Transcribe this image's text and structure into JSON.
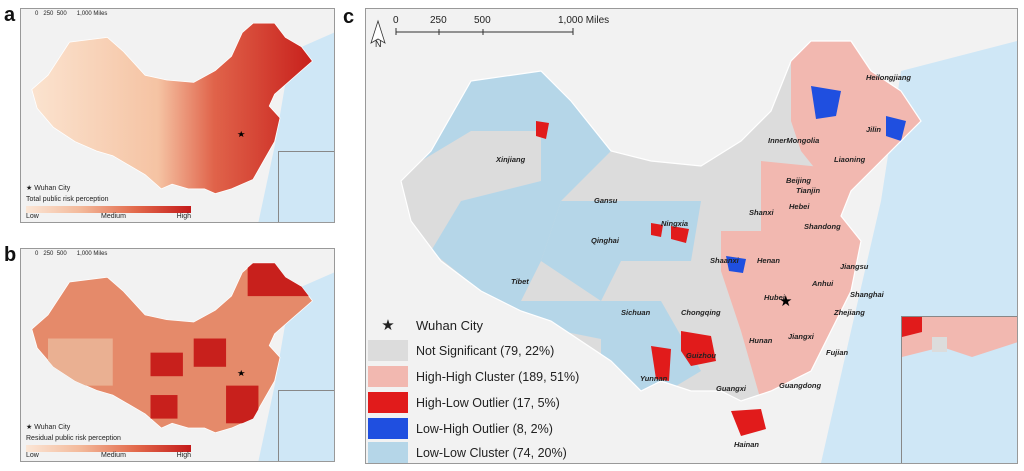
{
  "panels": {
    "a": {
      "label": "a",
      "legend_star": "Wuhan City",
      "legend_title": "Total public risk perception",
      "low": "Low",
      "medium": "Medium",
      "high": "High"
    },
    "b": {
      "label": "b",
      "legend_star": "Wuhan City",
      "legend_title": "Residual public risk perception",
      "low": "Low",
      "medium": "Medium",
      "high": "High"
    },
    "c": {
      "label": "c"
    }
  },
  "scalebar": {
    "ticks": [
      "0",
      "250",
      "500",
      "1,000 Miles"
    ],
    "north": "N"
  },
  "legend_c": {
    "star": "Wuhan City",
    "items": [
      {
        "label": "Not Significant (79, 22%)",
        "color": "#dcdcdc"
      },
      {
        "label": "High-High Cluster (189, 51%)",
        "color": "#f2b8b0"
      },
      {
        "label": "High-Low Outlier (17, 5%)",
        "color": "#e11b1b"
      },
      {
        "label": "Low-High Outlier (8, 2%)",
        "color": "#1f4fe0"
      },
      {
        "label": "Low-Low Cluster (74, 20%)",
        "color": "#b5d6e8"
      }
    ]
  },
  "provinces": [
    "Heilongjiang",
    "InnerMongolia",
    "Jilin",
    "Liaoning",
    "Xinjiang",
    "Beijing",
    "Tianjin",
    "Gansu",
    "Hebei",
    "Ningxia",
    "Shanxi",
    "Shandong",
    "Qinghai",
    "Shaanxi",
    "Henan",
    "Jiangsu",
    "Tibet",
    "Anhui",
    "Shanghai",
    "Hubei",
    "Sichuan",
    "Chongqing",
    "Zhejiang",
    "Hunan",
    "Jiangxi",
    "Guizhou",
    "Fujian",
    "Yunnan",
    "Guangxi",
    "Guangdong",
    "Hainan"
  ],
  "colors": {
    "sea": "#cfe7f6",
    "land_outside": "#f2f2f2"
  }
}
